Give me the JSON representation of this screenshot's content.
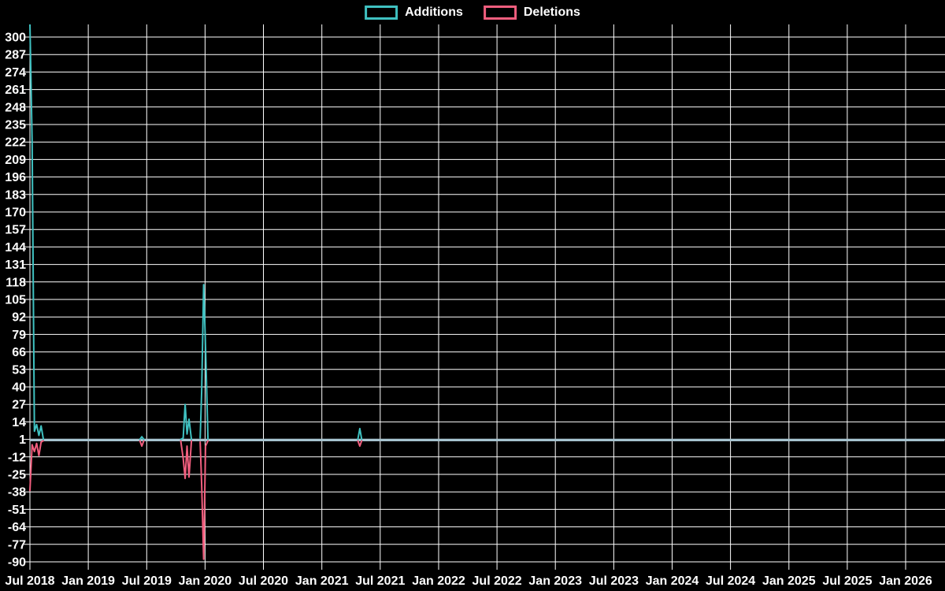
{
  "legend": {
    "items": [
      {
        "label": "Additions",
        "color": "#3fc1c1"
      },
      {
        "label": "Deletions",
        "color": "#f15e7e"
      }
    ]
  },
  "chart_data": {
    "type": "line",
    "title": "",
    "xlabel": "",
    "ylabel": "",
    "grid": true,
    "legend_position": "top-center",
    "background_color": "#000000",
    "grid_color": "#ffffff",
    "text_color": "#ffffff",
    "x_axis": {
      "unit": "months since Jul 2018",
      "tick_months": [
        0,
        6,
        12,
        18,
        24,
        30,
        36,
        42,
        48,
        54,
        60,
        66,
        72,
        78,
        84,
        90
      ],
      "tick_labels": [
        "Jul 2018",
        "Jan 2019",
        "Jul 2019",
        "Jan 2020",
        "Jul 2020",
        "Jan 2021",
        "Jul 2021",
        "Jan 2022",
        "Jul 2022",
        "Jan 2023",
        "Jul 2023",
        "Jan 2024",
        "Jul 2024",
        "Jan 2025",
        "Jul 2025",
        "Jan 2026"
      ],
      "range_months": [
        0,
        94
      ]
    },
    "y_axis": {
      "ticks": [
        300,
        287,
        274,
        261,
        248,
        235,
        222,
        209,
        196,
        183,
        170,
        157,
        144,
        131,
        118,
        105,
        92,
        79,
        66,
        53,
        40,
        27,
        14,
        1,
        -12,
        -25,
        -38,
        -51,
        -64,
        -77,
        -90
      ],
      "range": [
        -93,
        312
      ]
    },
    "baseline": {
      "value": 0.5,
      "color": "#a6c3cf",
      "from_month": 0,
      "to_month": 94
    },
    "series": [
      {
        "name": "Additions",
        "color": "#3fc1c1",
        "baseline_value": 1,
        "segments": [
          [
            [
              0,
              310
            ],
            [
              0.23,
              222
            ],
            [
              0.46,
              7
            ],
            [
              0.69,
              12
            ],
            [
              0.92,
              4
            ],
            [
              1.15,
              11
            ],
            [
              1.38,
              1
            ]
          ],
          [
            [
              11.3,
              1
            ],
            [
              11.5,
              3
            ],
            [
              11.7,
              1
            ]
          ],
          [
            [
              15.5,
              1
            ],
            [
              15.75,
              2
            ],
            [
              15.95,
              27
            ],
            [
              16.15,
              5
            ],
            [
              16.35,
              16
            ],
            [
              16.6,
              1
            ]
          ],
          [
            [
              17.5,
              2
            ],
            [
              17.65,
              37
            ],
            [
              17.85,
              116
            ],
            [
              18.05,
              70
            ],
            [
              18.3,
              1
            ]
          ],
          [
            [
              33.7,
              1
            ],
            [
              33.9,
              9
            ],
            [
              34.1,
              1
            ]
          ]
        ]
      },
      {
        "name": "Deletions",
        "color": "#f15e7e",
        "baseline_value": 0,
        "segments": [
          [
            [
              0,
              -37
            ],
            [
              0.23,
              -3
            ],
            [
              0.46,
              -8
            ],
            [
              0.69,
              -2
            ],
            [
              0.92,
              -11
            ],
            [
              1.15,
              -1
            ],
            [
              1.38,
              0
            ]
          ],
          [
            [
              11.3,
              0
            ],
            [
              11.5,
              -4
            ],
            [
              11.7,
              0
            ]
          ],
          [
            [
              15.5,
              0
            ],
            [
              15.75,
              -13
            ],
            [
              15.95,
              -28
            ],
            [
              16.15,
              -4
            ],
            [
              16.35,
              -27
            ],
            [
              16.6,
              0
            ]
          ],
          [
            [
              17.5,
              -1
            ],
            [
              17.65,
              -33
            ],
            [
              17.85,
              -88
            ],
            [
              18.05,
              -4
            ],
            [
              18.3,
              0
            ]
          ],
          [
            [
              33.7,
              0
            ],
            [
              33.9,
              -4
            ],
            [
              34.1,
              0
            ]
          ]
        ]
      }
    ]
  }
}
